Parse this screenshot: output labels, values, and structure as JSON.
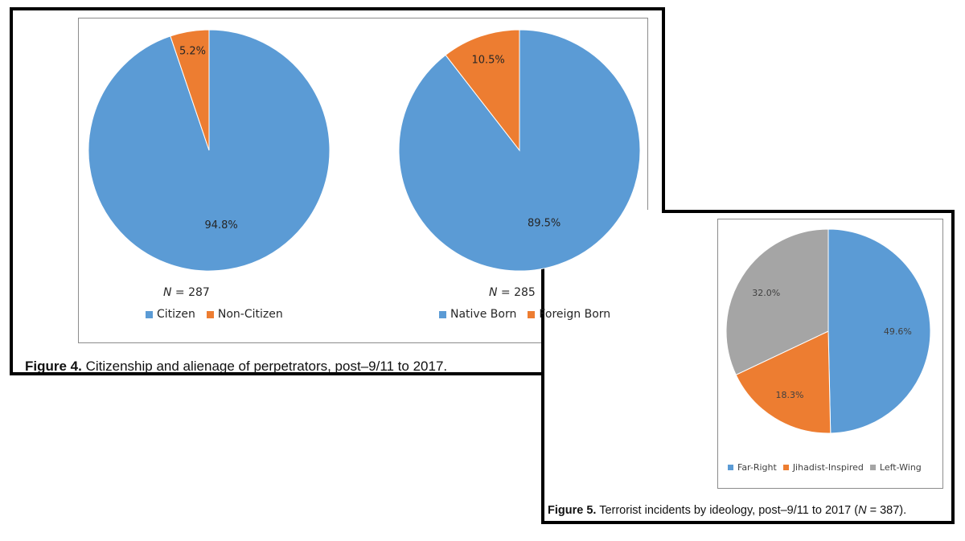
{
  "colors": {
    "blue": "#5b9bd5",
    "orange": "#ed7d31",
    "gray": "#a5a5a5"
  },
  "figure4": {
    "caption_label": "Figure 4.",
    "caption_text": " Citizenship and alienage of perpetrators, post–9/11 to 2017."
  },
  "figure5": {
    "caption_label": "Figure 5.",
    "caption_text": " Terrorist incidents by ideology, post–9/11 to 2017 (",
    "caption_n_var": "N",
    "caption_n_rest": " = 387)."
  },
  "chart_data": [
    {
      "type": "pie",
      "title": "",
      "n_var": "N",
      "n_rest": " = 287",
      "categories": [
        "Citizen",
        "Non-Citizen"
      ],
      "values": [
        94.8,
        5.2
      ],
      "data_labels": [
        "94.8%",
        "5.2%"
      ],
      "colors": [
        "#5b9bd5",
        "#ed7d31"
      ],
      "legend": "bottom"
    },
    {
      "type": "pie",
      "title": "",
      "n_var": "N",
      "n_rest": " = 285",
      "categories": [
        "Native Born",
        "Foreign Born"
      ],
      "values": [
        89.5,
        10.5
      ],
      "data_labels": [
        "89.5%",
        "10.5%"
      ],
      "colors": [
        "#5b9bd5",
        "#ed7d31"
      ],
      "legend": "bottom"
    },
    {
      "type": "pie",
      "title": "",
      "categories": [
        "Far-Right",
        "Jihadist-Inspired",
        "Left-Wing"
      ],
      "values": [
        49.6,
        18.3,
        32.0
      ],
      "data_labels": [
        "49.6%",
        "18.3%",
        "32.0%"
      ],
      "colors": [
        "#5b9bd5",
        "#ed7d31",
        "#a5a5a5"
      ],
      "legend": "bottom"
    }
  ]
}
